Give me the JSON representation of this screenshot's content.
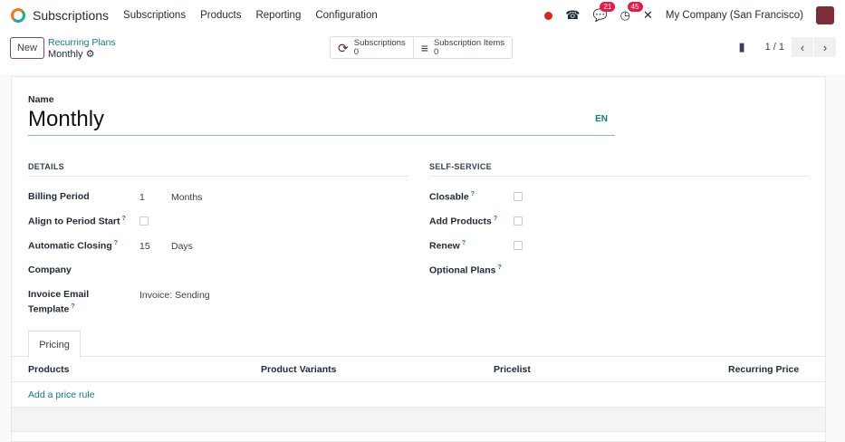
{
  "nav": {
    "app": "Subscriptions",
    "menu": [
      "Subscriptions",
      "Products",
      "Reporting",
      "Configuration"
    ],
    "chat_count": "21",
    "activity_count": "45",
    "company": "My Company (San Francisco)"
  },
  "control": {
    "new": "New",
    "breadcrumb_parent": "Recurring Plans",
    "breadcrumb_current": "Monthly",
    "stats": [
      {
        "label": "Subscriptions",
        "value": "0"
      },
      {
        "label": "Subscription Items",
        "value": "0"
      }
    ],
    "pager": "1 / 1"
  },
  "form": {
    "name_label": "Name",
    "name_value": "Monthly",
    "lang": "EN",
    "details": "DETAILS",
    "self_service": "SELF-SERVICE",
    "billing_period": "Billing Period",
    "billing_value": "1",
    "billing_unit": "Months",
    "align": "Align to Period Start",
    "auto_close": "Automatic Closing",
    "auto_value": "15",
    "auto_unit": "Days",
    "company": "Company",
    "invoice_tpl_1": "Invoice Email",
    "invoice_tpl_2": "Template",
    "invoice_tpl_value": "Invoice: Sending",
    "closable": "Closable",
    "add_products": "Add Products",
    "renew": "Renew",
    "optional_plans": "Optional Plans",
    "help": "?"
  },
  "pricing": {
    "tab": "Pricing",
    "columns": [
      "Products",
      "Product Variants",
      "Pricelist",
      "Recurring Price"
    ],
    "add": "Add a price rule"
  }
}
